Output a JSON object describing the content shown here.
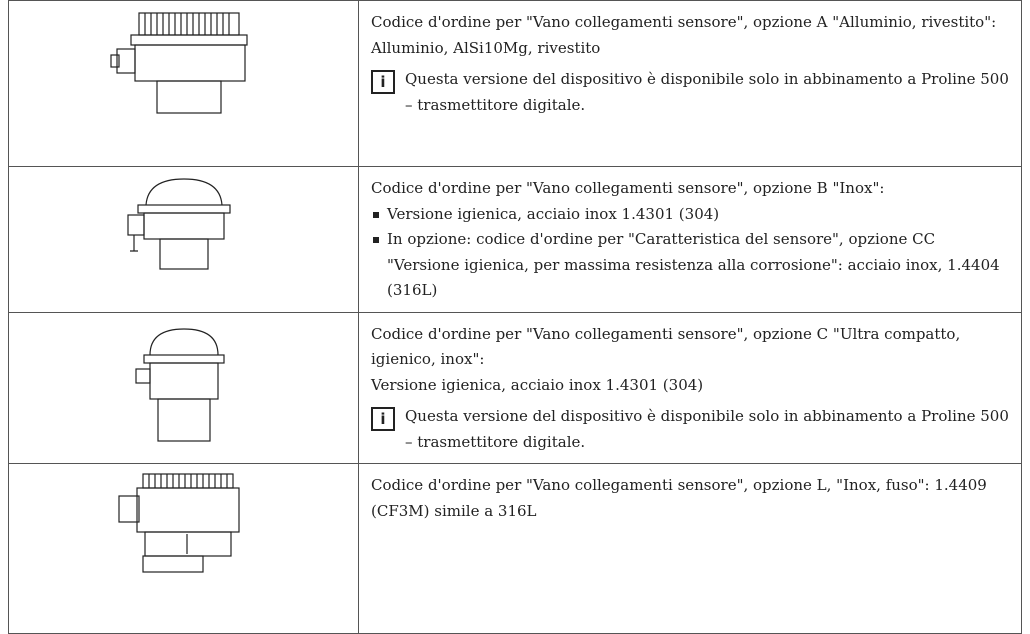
{
  "table": {
    "rows": [
      {
        "paragraphs": [
          "Codice d'ordine per \"Vano collegamenti sensore\", opzione A \"Alluminio, rivestito\":",
          "Alluminio, AlSi10Mg, rivestito"
        ],
        "note": "Questa versione del dispositivo è disponibile solo in abbinamento a Proline 500 – trasmettitore digitale."
      },
      {
        "paragraphs": [
          "Codice d'ordine per \"Vano collegamenti sensore\", opzione B \"Inox\":"
        ],
        "bullets": [
          "Versione igienica, acciaio inox 1.4301 (304)",
          "In opzione: codice d'ordine per \"Caratteristica del sensore\", opzione CC \"Versione igienica, per massima resistenza alla corrosione\": acciaio inox, 1.4404 (316L)"
        ]
      },
      {
        "paragraphs": [
          "Codice d'ordine per \"Vano collegamenti sensore\", opzione C \"Ultra compatto, igienico, inox\":",
          "Versione igienica, acciaio inox 1.4301 (304)"
        ],
        "note": "Questa versione del dispositivo è disponibile solo in abbinamento a Proline 500 – trasmettitore digitale."
      },
      {
        "paragraphs": [
          "Codice d'ordine per \"Vano collegamenti sensore\", opzione L, \"Inox, fuso\": 1.4409 (CF3M) simile a 316L"
        ]
      }
    ]
  }
}
